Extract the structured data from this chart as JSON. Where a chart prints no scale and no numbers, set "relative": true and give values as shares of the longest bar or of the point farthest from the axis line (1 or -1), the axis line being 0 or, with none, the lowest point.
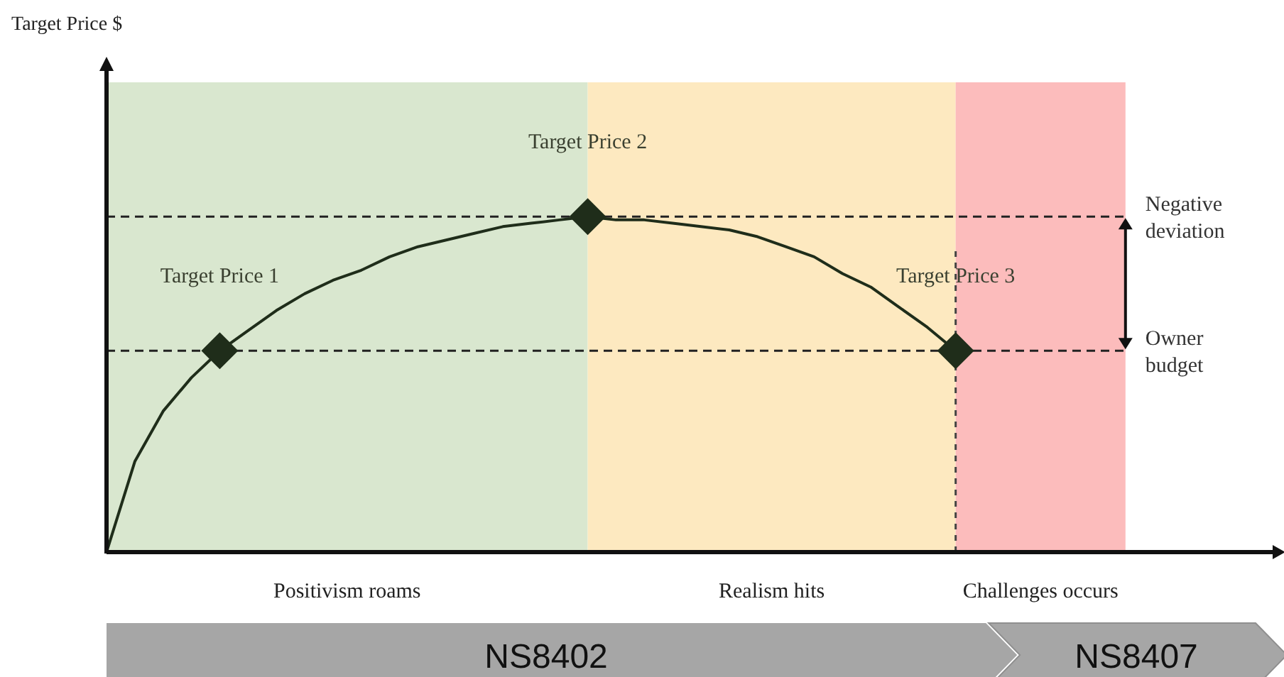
{
  "chart_data": {
    "type": "line",
    "relative": true,
    "line_style": "solid",
    "categories": [
      null,
      null,
      null,
      null,
      null,
      null,
      null,
      null,
      null,
      null,
      null,
      null,
      null,
      null,
      null,
      null,
      null,
      null,
      null,
      null,
      null,
      null,
      null,
      null,
      null,
      null,
      null,
      null,
      null,
      null,
      null,
      null,
      null,
      null,
      null,
      null,
      null,
      null,
      null,
      null,
      null,
      null
    ],
    "series": [
      {
        "color": "#1f2d1a",
        "values": [
          0,
          0.27,
          0.42,
          0.52,
          0.6,
          0.66,
          0.72,
          0.77,
          0.81,
          0.84,
          0.88,
          0.91,
          0.93,
          0.95,
          0.97,
          0.98,
          0.99,
          1,
          0.99,
          0.99,
          0.98,
          0.97,
          0.96,
          0.94,
          0.91,
          0.88,
          0.83,
          0.79,
          0.73,
          0.67,
          0.6,
          null,
          null,
          null,
          null,
          null,
          null,
          null,
          null,
          null,
          null,
          null
        ]
      }
    ],
    "ref_lines": [
      {
        "axis": "y",
        "value": 0.6,
        "label": "Owner budget",
        "line_style": "dashed",
        "color": "#222222"
      },
      {
        "axis": "y",
        "value": 1,
        "label": "Negative deviation",
        "line_style": "dashed",
        "color": "#222222"
      }
    ],
    "annotations": [
      "Target Price $",
      {
        "text": "Target Price 1",
        "y": 0.6
      },
      {
        "text": "Target Price 2",
        "y": 1
      },
      {
        "text": "Target Price 3",
        "y": 0.6
      },
      "Positivism roams",
      "Realism hits",
      "Challenges occurs",
      "NS8402",
      "NS8407"
    ]
  }
}
